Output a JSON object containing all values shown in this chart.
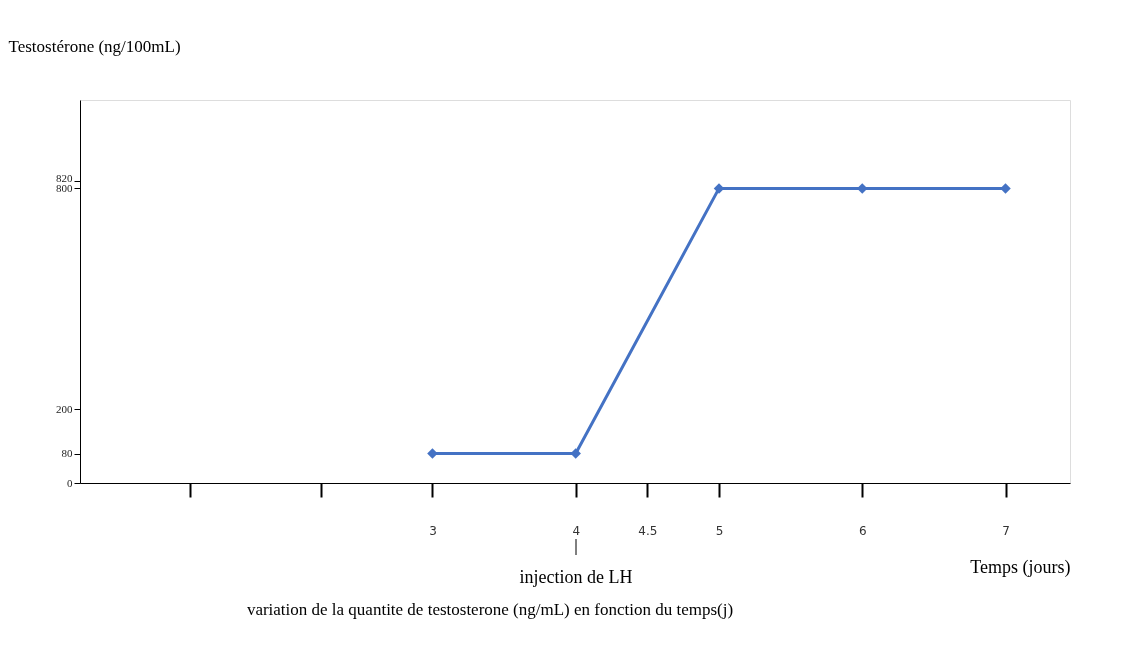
{
  "chart_data": {
    "type": "line",
    "xlabel": "Temps (jours)",
    "ylabel": "Testostérone (ng/100mL)",
    "x": [
      3,
      4,
      5,
      6,
      7
    ],
    "series": [
      {
        "color": "#4472c4",
        "values": [
          80,
          80,
          800,
          800,
          800
        ]
      }
    ],
    "xlim": [
      0.54,
      7.45
    ],
    "xticks": [
      {
        "value": 1.31,
        "label": null
      },
      {
        "value": 2.22,
        "label": null
      },
      3,
      4,
      4.5,
      5,
      6,
      7
    ],
    "ylim": [
      0,
      1040
    ],
    "yticks": [
      0,
      80,
      200,
      800,
      820
    ],
    "grid": false,
    "marker": "diamond",
    "line_style": "solid",
    "annotations": [
      "injection de LH",
      "variation de la quantite de testosterone (ng/mL) en fonction du temps(j)"
    ]
  }
}
